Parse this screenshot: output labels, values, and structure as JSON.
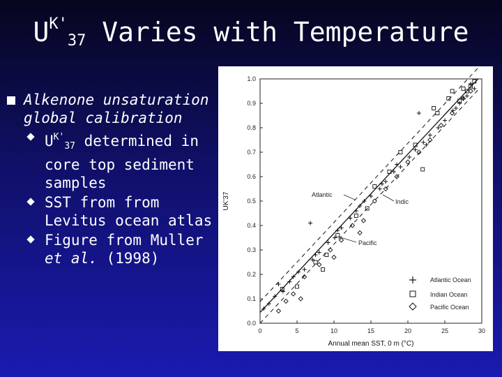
{
  "slide": {
    "title_main": "UK'37 Varies with Temperature",
    "title_prefix": "U",
    "title_sup": "K'",
    "title_sub": "37",
    "title_rest": " Varies with Temperature"
  },
  "bullets": {
    "main": "Alkenone unsaturation global calibration",
    "sub1_prefix": "U",
    "sub1_sup": "K'",
    "sub1_sub": "37",
    "sub1_rest": " determined in core top sediment samples",
    "sub2": "SST from from Levitus ocean atlas",
    "sub3_a": "Figure from Muller ",
    "sub3_italic": "et al.",
    "sub3_b": " (1998)"
  },
  "chart_data": {
    "type": "scatter",
    "xlabel": "Annual mean SST, 0 m (°C)",
    "ylabel": "UK'37",
    "xlim": [
      0,
      30
    ],
    "ylim": [
      0.0,
      1.0
    ],
    "x_ticks": [
      "0",
      "5",
      "10",
      "15",
      "20",
      "25",
      "30"
    ],
    "y_ticks": [
      "0.0",
      "0.1",
      "0.2",
      "0.3",
      "0.4",
      "0.5",
      "0.6",
      "0.7",
      "0.8",
      "0.9",
      "1.0"
    ],
    "regression_line": {
      "x": [
        0,
        29.5
      ],
      "y": [
        0.044,
        1.0
      ]
    },
    "confidence_lines": [
      {
        "x": [
          0,
          29.5
        ],
        "y": [
          0.0,
          0.955
        ]
      },
      {
        "x": [
          0,
          29.5
        ],
        "y": [
          0.088,
          1.045
        ]
      }
    ],
    "annotations": [
      "Atlantic",
      "Indic",
      "Pacific"
    ],
    "legend": {
      "placement": "bottom-right",
      "entries": [
        {
          "label": "Atlantic Ocean",
          "marker": "+"
        },
        {
          "label": "Indian Ocean",
          "marker": "square"
        },
        {
          "label": "Pacific Ocean",
          "marker": "diamond"
        }
      ]
    },
    "series": [
      {
        "name": "Atlantic Ocean",
        "marker": "+",
        "x": [
          0.5,
          1.2,
          2.0,
          3.1,
          4.0,
          5.2,
          6.0,
          7.1,
          8.0,
          9.2,
          10.1,
          11.0,
          12.2,
          13.0,
          14.1,
          15.0,
          16.2,
          17.0,
          18.1,
          19.0,
          20.2,
          21.0,
          22.1,
          23.0,
          24.1,
          25.0,
          26.1,
          27.0,
          28.0,
          29.0,
          28.5,
          27.5,
          26.5,
          22.5,
          18.5,
          16.5,
          13.5,
          10.5,
          7.5,
          4.5,
          2.5,
          6.8,
          21.5
        ],
        "y": [
          0.06,
          0.08,
          0.11,
          0.13,
          0.17,
          0.21,
          0.22,
          0.26,
          0.29,
          0.33,
          0.35,
          0.39,
          0.43,
          0.46,
          0.5,
          0.52,
          0.55,
          0.58,
          0.62,
          0.64,
          0.68,
          0.71,
          0.74,
          0.77,
          0.8,
          0.83,
          0.87,
          0.9,
          0.93,
          0.96,
          0.98,
          0.92,
          0.88,
          0.73,
          0.65,
          0.57,
          0.48,
          0.38,
          0.28,
          0.19,
          0.16,
          0.41,
          0.86
        ]
      },
      {
        "name": "Indian Ocean",
        "marker": "square",
        "x": [
          3.0,
          5.0,
          7.5,
          9.0,
          10.5,
          13.0,
          15.5,
          17.5,
          19.0,
          21.0,
          22.0,
          24.0,
          25.5,
          26.0,
          27.0,
          27.5,
          28.0,
          28.5,
          29.0,
          23.5,
          14.5,
          8.5
        ],
        "y": [
          0.14,
          0.15,
          0.25,
          0.28,
          0.36,
          0.44,
          0.56,
          0.62,
          0.7,
          0.73,
          0.63,
          0.86,
          0.92,
          0.95,
          0.91,
          0.96,
          0.95,
          0.97,
          0.99,
          0.88,
          0.47,
          0.22
        ]
      },
      {
        "name": "Pacific Ocean",
        "marker": "diamond",
        "x": [
          2.5,
          3.5,
          4.5,
          6.0,
          8.0,
          9.5,
          11.0,
          12.5,
          14.0,
          15.5,
          17.0,
          18.5,
          20.0,
          21.5,
          23.0,
          24.5,
          26.0,
          27.5,
          28.5,
          13.5,
          10.0,
          5.5
        ],
        "y": [
          0.05,
          0.09,
          0.12,
          0.19,
          0.24,
          0.3,
          0.34,
          0.4,
          0.42,
          0.5,
          0.55,
          0.6,
          0.66,
          0.7,
          0.75,
          0.81,
          0.86,
          0.92,
          0.95,
          0.37,
          0.27,
          0.1
        ]
      }
    ]
  }
}
